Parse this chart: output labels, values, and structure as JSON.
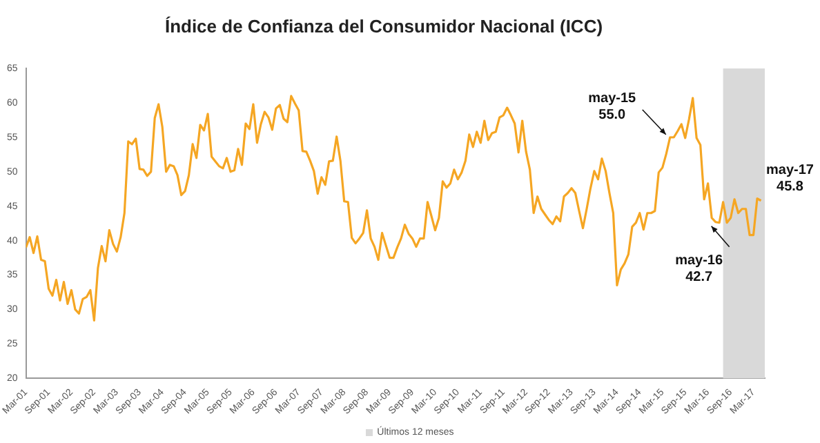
{
  "chart_data": {
    "type": "line",
    "title": "Índice de Confianza del Consumidor Nacional (ICC)",
    "x": [
      "2001-03",
      "2001-04",
      "2001-05",
      "2001-06",
      "2001-07",
      "2001-08",
      "2001-09",
      "2001-10",
      "2001-11",
      "2001-12",
      "2002-01",
      "2002-02",
      "2002-03",
      "2002-04",
      "2002-05",
      "2002-06",
      "2002-07",
      "2002-08",
      "2002-09",
      "2002-10",
      "2002-11",
      "2002-12",
      "2003-01",
      "2003-02",
      "2003-03",
      "2003-04",
      "2003-05",
      "2003-06",
      "2003-07",
      "2003-08",
      "2003-09",
      "2003-10",
      "2003-11",
      "2003-12",
      "2004-01",
      "2004-02",
      "2004-03",
      "2004-04",
      "2004-05",
      "2004-06",
      "2004-07",
      "2004-08",
      "2004-09",
      "2004-10",
      "2004-11",
      "2004-12",
      "2005-01",
      "2005-02",
      "2005-03",
      "2005-04",
      "2005-05",
      "2005-06",
      "2005-07",
      "2005-08",
      "2005-09",
      "2005-10",
      "2005-11",
      "2005-12",
      "2006-01",
      "2006-02",
      "2006-03",
      "2006-04",
      "2006-05",
      "2006-06",
      "2006-07",
      "2006-08",
      "2006-09",
      "2006-10",
      "2006-11",
      "2006-12",
      "2007-01",
      "2007-02",
      "2007-03",
      "2007-04",
      "2007-05",
      "2007-06",
      "2007-07",
      "2007-08",
      "2007-09",
      "2007-10",
      "2007-11",
      "2007-12",
      "2008-01",
      "2008-02",
      "2008-03",
      "2008-04",
      "2008-05",
      "2008-06",
      "2008-07",
      "2008-08",
      "2008-09",
      "2008-10",
      "2008-11",
      "2008-12",
      "2009-01",
      "2009-02",
      "2009-03",
      "2009-04",
      "2009-05",
      "2009-06",
      "2009-07",
      "2009-08",
      "2009-09",
      "2009-10",
      "2009-11",
      "2009-12",
      "2010-01",
      "2010-02",
      "2010-03",
      "2010-04",
      "2010-05",
      "2010-06",
      "2010-07",
      "2010-08",
      "2010-09",
      "2010-10",
      "2010-11",
      "2010-12",
      "2011-01",
      "2011-02",
      "2011-03",
      "2011-04",
      "2011-05",
      "2011-06",
      "2011-07",
      "2011-08",
      "2011-09",
      "2011-10",
      "2011-11",
      "2011-12",
      "2012-01",
      "2012-02",
      "2012-03",
      "2012-04",
      "2012-05",
      "2012-06",
      "2012-07",
      "2012-08",
      "2012-09",
      "2012-10",
      "2012-11",
      "2012-12",
      "2013-01",
      "2013-02",
      "2013-03",
      "2013-04",
      "2013-05",
      "2013-06",
      "2013-07",
      "2013-08",
      "2013-09",
      "2013-10",
      "2013-11",
      "2013-12",
      "2014-01",
      "2014-02",
      "2014-03",
      "2014-04",
      "2014-05",
      "2014-06",
      "2014-07",
      "2014-08",
      "2014-09",
      "2014-10",
      "2014-11",
      "2014-12",
      "2015-01",
      "2015-02",
      "2015-03",
      "2015-04",
      "2015-05",
      "2015-06",
      "2015-07",
      "2015-08",
      "2015-09",
      "2015-10",
      "2015-11",
      "2015-12",
      "2016-01",
      "2016-02",
      "2016-03",
      "2016-04",
      "2016-05",
      "2016-06",
      "2016-07",
      "2016-08",
      "2016-09",
      "2016-10",
      "2016-11",
      "2016-12",
      "2017-01",
      "2017-02",
      "2017-03",
      "2017-04",
      "2017-05"
    ],
    "series": [
      {
        "color": "#f5a623",
        "values": [
          39,
          40.5,
          38.2,
          40.6,
          37.2,
          37,
          33,
          32,
          34.3,
          31.3,
          34,
          30.8,
          32.8,
          30,
          29.4,
          31.5,
          31.8,
          32.8,
          28.4,
          36,
          39.2,
          37,
          41.5,
          39.5,
          38.4,
          40.5,
          44,
          54.4,
          54,
          54.8,
          50.4,
          50.3,
          49.4,
          50,
          57.8,
          59.8,
          56.5,
          50,
          51,
          50.8,
          49.5,
          46.6,
          47.2,
          49.5,
          54,
          52,
          56.8,
          56,
          58.4,
          52.2,
          51.5,
          50.8,
          50.5,
          52,
          50,
          50.2,
          53.3,
          51,
          57,
          56.2,
          59.8,
          54.2,
          56.9,
          58.7,
          57.9,
          56.1,
          59.2,
          59.7,
          57.7,
          57.2,
          61,
          59.9,
          58.9,
          53,
          52.9,
          51.6,
          50.1,
          46.8,
          49.2,
          48.1,
          51.5,
          51.6,
          55.1,
          51.6,
          45.7,
          45.6,
          40.4,
          39.6,
          40.3,
          41.1,
          44.4,
          40.3,
          39.1,
          37.2,
          41.1,
          39.3,
          37.5,
          37.5,
          39,
          40.3,
          42.3,
          41,
          40.3,
          39.1,
          40.3,
          40.3,
          45.6,
          43.6,
          41.5,
          43.3,
          48.6,
          47.7,
          48.3,
          50.3,
          48.9,
          49.9,
          51.6,
          55.4,
          53.6,
          55.8,
          54.2,
          57.4,
          54.6,
          55.6,
          55.8,
          57.9,
          58.2,
          59.3,
          58.2,
          57,
          52.8,
          57.4,
          52.9,
          50.3,
          44,
          46.4,
          44.6,
          43.8,
          43,
          42.4,
          43.5,
          42.8,
          46.4,
          46.9,
          47.6,
          46.9,
          44.3,
          41.8,
          44.6,
          47.6,
          50.1,
          48.9,
          51.9,
          50.1,
          46.9,
          44,
          33.5,
          35.8,
          36.7,
          38,
          42,
          42.6,
          44,
          41.6,
          44,
          44,
          44.3,
          49.9,
          50.6,
          52.6,
          55.0,
          55,
          55.9,
          56.9,
          54.9,
          57.6,
          60.7,
          54.9,
          53.9,
          46,
          48.3,
          43.3,
          42.7,
          42.6,
          45.6,
          42.6,
          43.3,
          46,
          44,
          44.6,
          44.6,
          40.8,
          40.8,
          46.1,
          45.8
        ]
      }
    ],
    "xlim": [
      "2001-03",
      "2017-06"
    ],
    "xticks": [
      {
        "value": "2001-03",
        "label": "Mar-01"
      },
      {
        "value": "2001-09",
        "label": "Sep-01"
      },
      {
        "value": "2002-03",
        "label": "Mar-02"
      },
      {
        "value": "2002-09",
        "label": "Sep-02"
      },
      {
        "value": "2003-03",
        "label": "Mar-03"
      },
      {
        "value": "2003-09",
        "label": "Sep-03"
      },
      {
        "value": "2004-03",
        "label": "Mar-04"
      },
      {
        "value": "2004-09",
        "label": "Sep-04"
      },
      {
        "value": "2005-03",
        "label": "Mar-05"
      },
      {
        "value": "2005-09",
        "label": "Sep-05"
      },
      {
        "value": "2006-03",
        "label": "Mar-06"
      },
      {
        "value": "2006-09",
        "label": "Sep-06"
      },
      {
        "value": "2007-03",
        "label": "Mar-07"
      },
      {
        "value": "2007-09",
        "label": "Sep-07"
      },
      {
        "value": "2008-03",
        "label": "Mar-08"
      },
      {
        "value": "2008-09",
        "label": "Sep-08"
      },
      {
        "value": "2009-03",
        "label": "Mar-09"
      },
      {
        "value": "2009-09",
        "label": "Sep-09"
      },
      {
        "value": "2010-03",
        "label": "Mar-10"
      },
      {
        "value": "2010-09",
        "label": "Sep-10"
      },
      {
        "value": "2011-03",
        "label": "Mar-11"
      },
      {
        "value": "2011-09",
        "label": "Sep-11"
      },
      {
        "value": "2012-03",
        "label": "Mar-12"
      },
      {
        "value": "2012-09",
        "label": "Sep-12"
      },
      {
        "value": "2013-03",
        "label": "Mar-13"
      },
      {
        "value": "2013-09",
        "label": "Sep-13"
      },
      {
        "value": "2014-03",
        "label": "Mar-14"
      },
      {
        "value": "2014-09",
        "label": "Sep-14"
      },
      {
        "value": "2015-03",
        "label": "Mar-15"
      },
      {
        "value": "2015-09",
        "label": "Sep-15"
      },
      {
        "value": "2016-03",
        "label": "Mar-16"
      },
      {
        "value": "2016-09",
        "label": "Sep-16"
      },
      {
        "value": "2017-03",
        "label": "Mar-17"
      }
    ],
    "ylim": [
      20,
      65
    ],
    "yticks": [
      20,
      25,
      30,
      35,
      40,
      45,
      50,
      55,
      60,
      65
    ],
    "bands": [
      {
        "axis": "x",
        "from": "2016-07",
        "to": "2017-06",
        "label": "Últimos 12 meses",
        "color": "#d9d9d9"
      }
    ],
    "annotations": [
      {
        "text": "may-15\n55.0",
        "x": "2015-05",
        "y": 55.0
      },
      {
        "text": "may-16\n42.7",
        "x": "2016-05",
        "y": 42.7
      },
      {
        "text": "may-17\n45.8",
        "x": "2017-05",
        "y": 45.8
      }
    ],
    "grid": false,
    "legend": "bottom"
  }
}
